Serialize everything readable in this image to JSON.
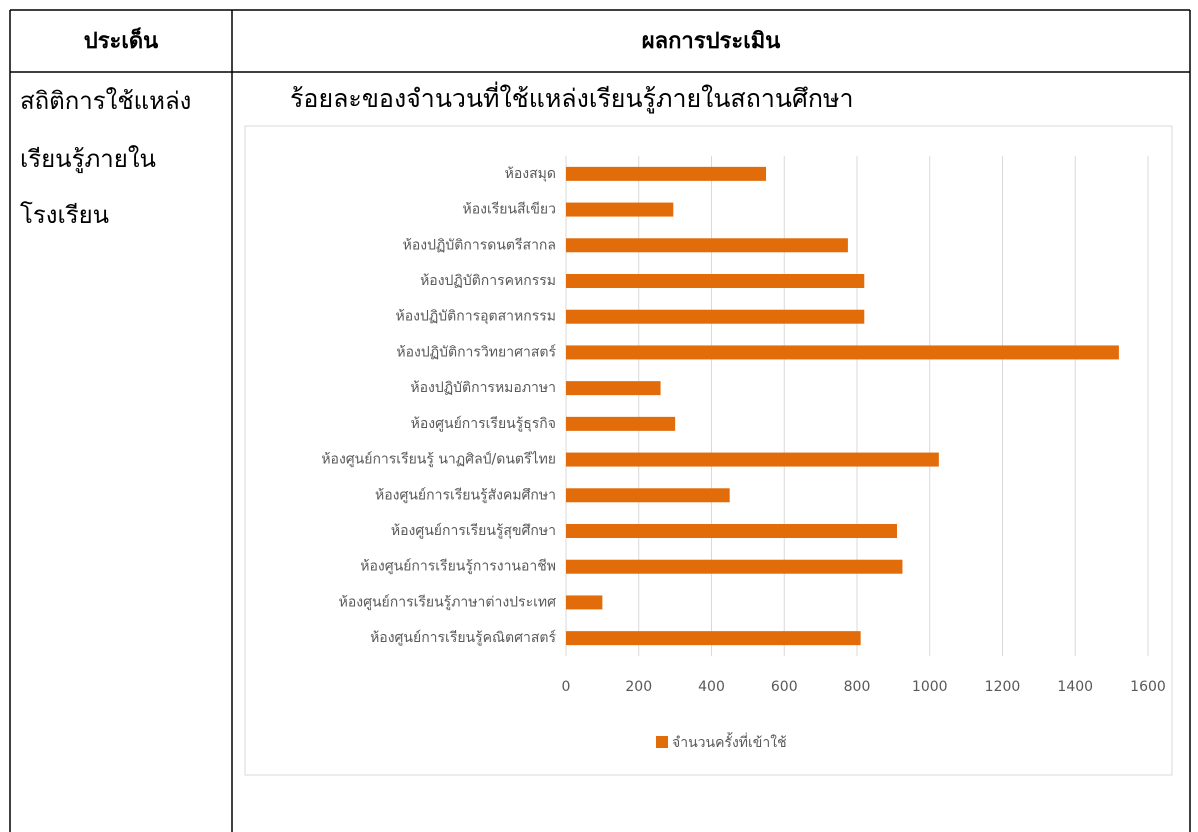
{
  "table": {
    "headers": [
      "ประเด็น",
      "ผลการประเมิน"
    ],
    "rows": [
      [
        [
          "สถิติการใช้แหล่ง",
          "เรียนรู้ภายใน",
          "โรงเรียน"
        ]
      ]
    ]
  },
  "chart_data": {
    "type": "bar",
    "orientation": "horizontal",
    "title": "ร้อยละของจำนวนที่ใช้แหล่งเรียนรู้ภายในสถานศึกษา",
    "categories": [
      "ห้องสมุด",
      "ห้องเรียนสีเขียว",
      "ห้องปฏิบัติการดนตรีสากล",
      "ห้องปฏิบัติการคหกรรม",
      "ห้องปฏิบัติการอุตสาหกรรม",
      "ห้องปฏิบัติการวิทยาศาสตร์",
      "ห้องปฏิบัติการหมอภาษา",
      "ห้องศูนย์การเรียนรู้ธุรกิจ",
      "ห้องศูนย์การเรียนรู้ นาฏศิลป์/ดนตรีไทย",
      "ห้องศูนย์การเรียนรู้สังคมศึกษา",
      "ห้องศูนย์การเรียนรู้สุขศึกษา",
      "ห้องศูนย์การเรียนรู้การงานอาชีพ",
      "ห้องศูนย์การเรียนรู้ภาษาต่างประเทศ",
      "ห้องศูนย์การเรียนรู้คณิตศาสตร์"
    ],
    "series": [
      {
        "name": "จำนวนครั้งที่เข้าใช้",
        "color": "#e36c0a",
        "values": [
          550,
          295,
          775,
          820,
          820,
          1520,
          260,
          300,
          1025,
          450,
          910,
          925,
          100,
          810
        ]
      }
    ],
    "xlim": [
      0,
      1600
    ],
    "xticks": [
      0,
      200,
      400,
      600,
      800,
      1000,
      1200,
      1400,
      1600
    ],
    "grid": true,
    "legend": "bottom"
  }
}
